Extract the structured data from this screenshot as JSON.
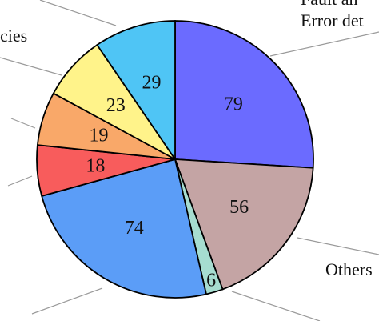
{
  "chart_data": {
    "type": "pie",
    "start_angle_deg": 90,
    "direction": "clockwise",
    "slices": [
      {
        "value": 79,
        "color": "#6B6BFF",
        "label_text": "79"
      },
      {
        "value": 56,
        "color": "#C4A4A4",
        "label_text": "56"
      },
      {
        "value": 6,
        "color": "#A6DDD0",
        "label_text": "6"
      },
      {
        "value": 74,
        "color": "#5B9DF7",
        "label_text": "74"
      },
      {
        "value": 18,
        "color": "#F85C5C",
        "label_text": "18"
      },
      {
        "value": 19,
        "color": "#F9A869",
        "label_text": "19"
      },
      {
        "value": 23,
        "color": "#FFF38A",
        "label_text": "23"
      },
      {
        "value": 29,
        "color": "#4FC5F5",
        "label_text": "29"
      }
    ],
    "outer_labels": {
      "error_partial": "Error det",
      "top_partial": "Fault an",
      "left_partial": "cies",
      "others_partial": "Others"
    }
  }
}
